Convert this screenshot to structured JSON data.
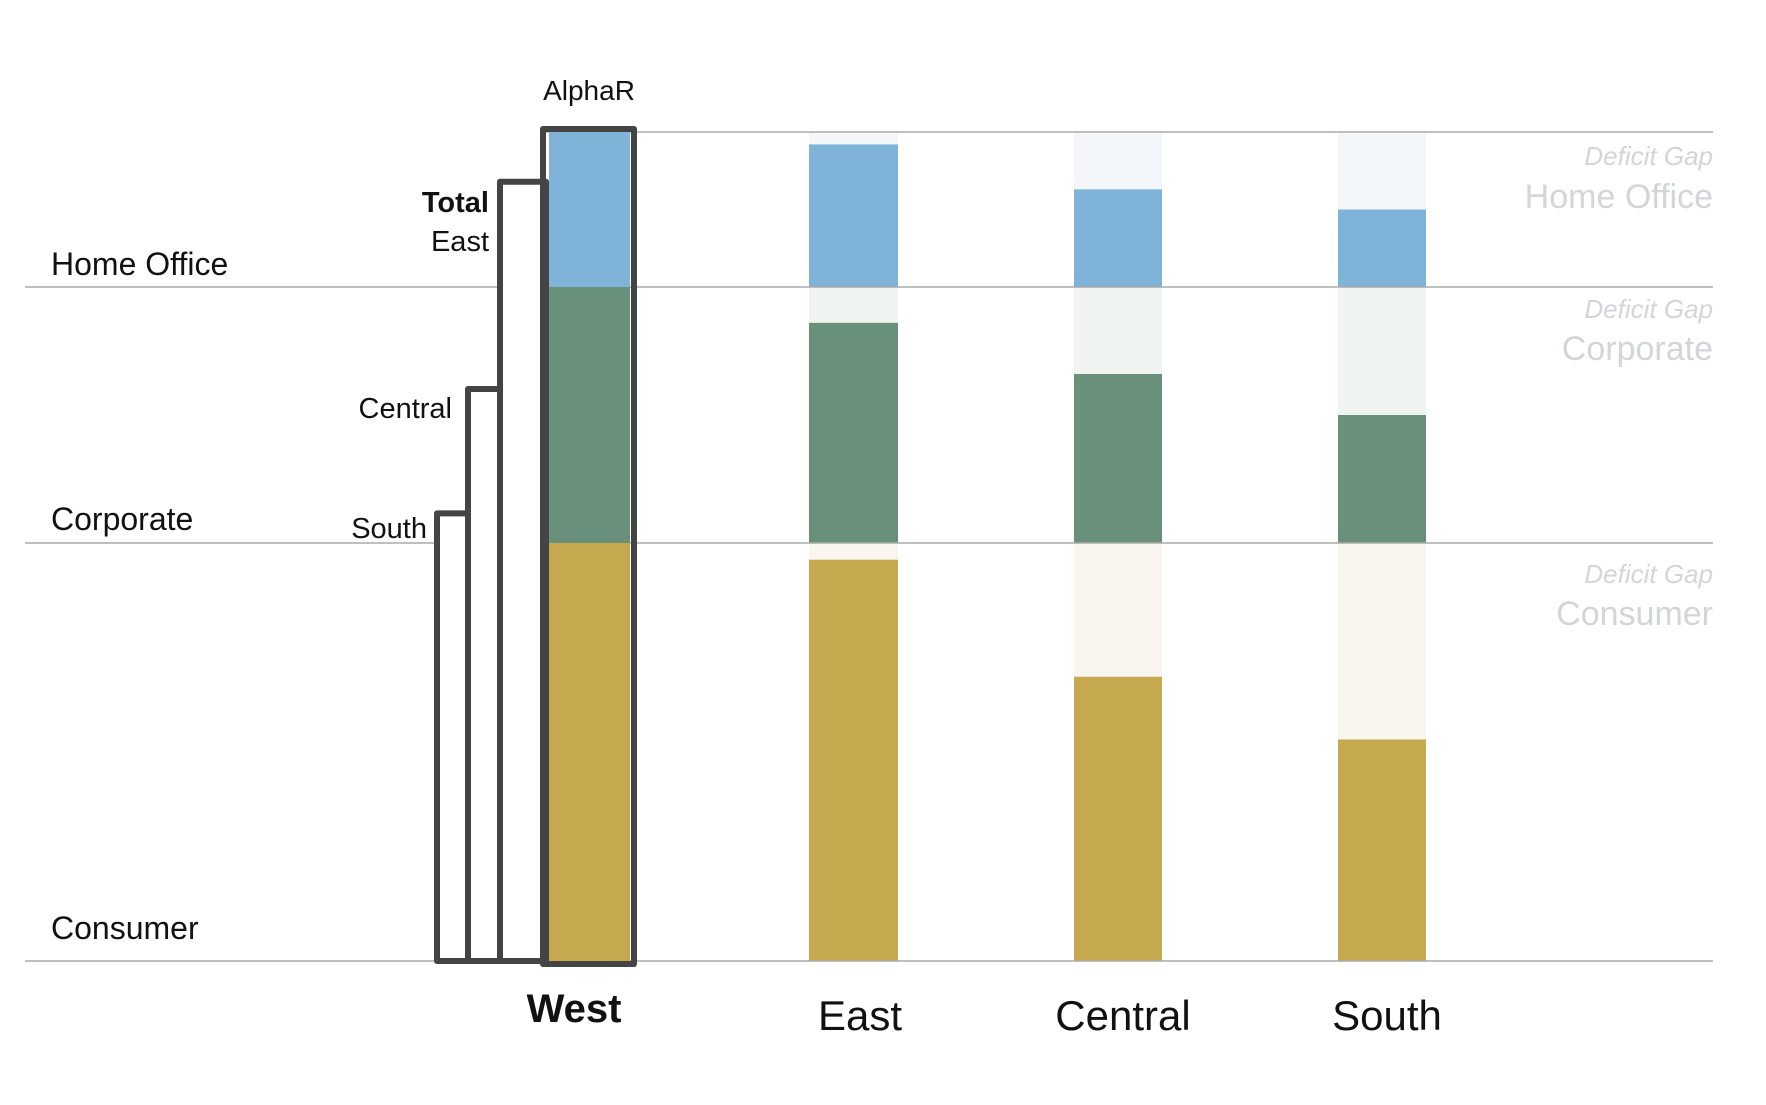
{
  "chart_data": {
    "type": "bar",
    "subtype": "stacked bar, each segment as percent of West benchmark",
    "benchmark_label": "AlphaR",
    "categories": [
      "West",
      "East",
      "Central",
      "South"
    ],
    "benchmark_category": "West",
    "segments": [
      "Consumer",
      "Corporate",
      "Home Office"
    ],
    "series": [
      {
        "name": "Consumer",
        "values": [
          100,
          96,
          68,
          53
        ]
      },
      {
        "name": "Corporate",
        "values": [
          100,
          86,
          66,
          50
        ]
      },
      {
        "name": "Home Office",
        "values": [
          100,
          92,
          63,
          50
        ]
      }
    ],
    "totals_step": {
      "title": "Total",
      "labels": [
        "East",
        "Central",
        "South"
      ],
      "values": [
        94,
        69,
        54
      ]
    },
    "gap_label": "Deficit Gap",
    "gap_labels": [
      {
        "line1": "Deficit Gap",
        "line2": "Home Office"
      },
      {
        "line1": "Deficit Gap",
        "line2": "Corporate"
      },
      {
        "line1": "Deficit Gap",
        "line2": "Consumer"
      }
    ],
    "row_labels": [
      "Home Office",
      "Corporate",
      "Consumer"
    ],
    "ylim": [
      0,
      100
    ],
    "grid": true,
    "colors": {
      "Home Office": "#7fb3d8",
      "Corporate": "#68907a",
      "Consumer": "#c6a84f",
      "Home Office gap": "#f4f7fa",
      "Corporate gap": "#f0f4f1",
      "Consumer gap": "#f8f6ef",
      "frame": "#444444",
      "gridline": "#aaaaaa",
      "gap_text": "#d3d6d6"
    }
  }
}
